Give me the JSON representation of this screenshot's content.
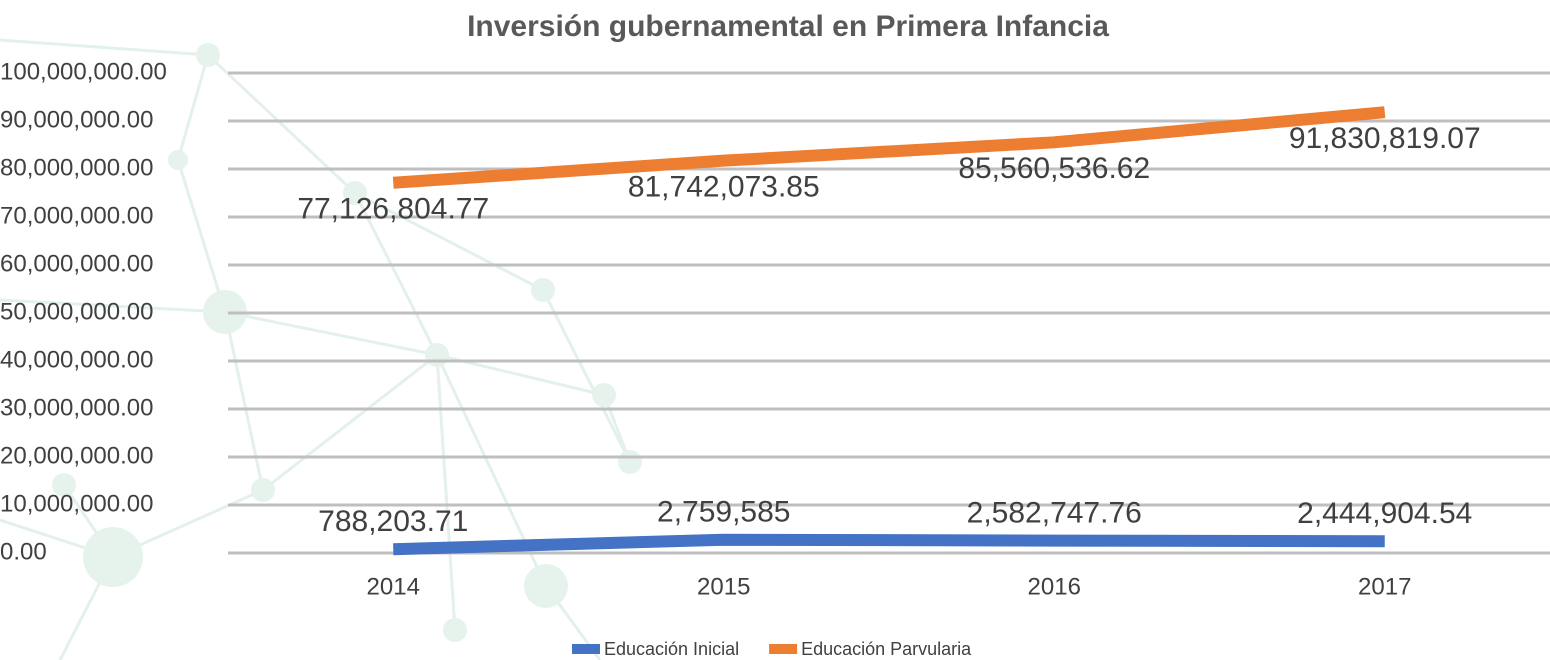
{
  "chart_data": {
    "type": "line",
    "title": "Inversión gubernamental en Primera Infancia",
    "categories": [
      "2014",
      "2015",
      "2016",
      "2017"
    ],
    "series": [
      {
        "name": "Educación Inicial",
        "color": "#4472c4",
        "values": [
          788203.71,
          2759585,
          2582747.76,
          2444904.54
        ],
        "value_labels": [
          "788,203.71",
          "2,759,585",
          "2,582,747.76",
          "2,444,904.54"
        ]
      },
      {
        "name": "Educación Parvularia",
        "color": "#ed7d31",
        "values": [
          77126804.77,
          81742073.85,
          85560536.62,
          91830819.07
        ],
        "value_labels": [
          "77,126,804.77",
          "81,742,073.85",
          "85,560,536.62",
          "91,830,819.07"
        ]
      }
    ],
    "ylim": [
      0,
      100000000
    ],
    "yticks": [
      {
        "value": 0,
        "label": "0.00"
      },
      {
        "value": 10000000,
        "label": "10,000,000.00"
      },
      {
        "value": 20000000,
        "label": "20,000,000.00"
      },
      {
        "value": 30000000,
        "label": "30,000,000.00"
      },
      {
        "value": 40000000,
        "label": "40,000,000.00"
      },
      {
        "value": 50000000,
        "label": "50,000,000.00"
      },
      {
        "value": 60000000,
        "label": "60,000,000.00"
      },
      {
        "value": 70000000,
        "label": "70,000,000.00"
      },
      {
        "value": 80000000,
        "label": "80,000,000.00"
      },
      {
        "value": 90000000,
        "label": "90,000,000.00"
      },
      {
        "value": 100000000,
        "label": "100,000,000.00"
      }
    ],
    "grid": true,
    "legend": "bottom"
  }
}
